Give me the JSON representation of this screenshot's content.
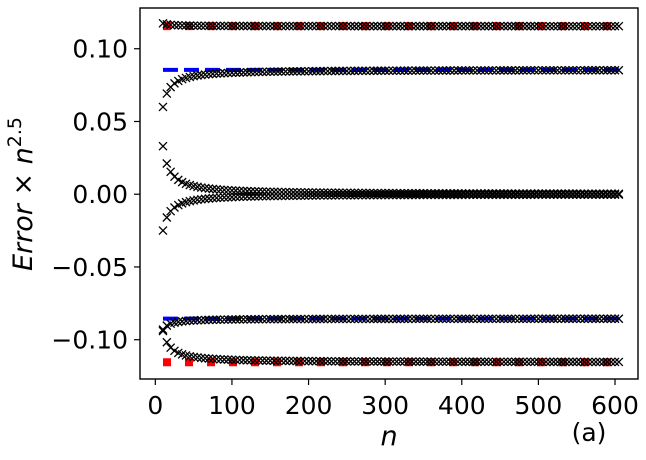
{
  "chart_data": {
    "type": "scatter",
    "title": "",
    "xlabel": "n",
    "ylabel_main": "Error × n",
    "ylabel_exponent": "2.5",
    "panel_label": "(a)",
    "xlim": [
      -20,
      630
    ],
    "ylim": [
      -0.127,
      0.128
    ],
    "xticks": [
      0,
      100,
      200,
      300,
      400,
      500,
      600
    ],
    "xtick_labels": [
      "0",
      "100",
      "200",
      "300",
      "400",
      "500",
      "600"
    ],
    "yticks": [
      -0.1,
      -0.05,
      0.0,
      0.05,
      0.1
    ],
    "ytick_labels": [
      "−0.10",
      "−0.05",
      "0.00",
      "0.05",
      "0.10"
    ],
    "grid": false,
    "marker_series": {
      "marker": "x",
      "color": "#000000",
      "n_start": 10,
      "n_end": 605,
      "n_step": 5,
      "curves": [
        {
          "limit": 0.1155,
          "start_value": 0.1175
        },
        {
          "limit": 0.0855,
          "start_value": 0.06
        },
        {
          "limit": 0.0,
          "start_value": 0.033
        },
        {
          "limit": 0.0,
          "start_value": -0.025
        },
        {
          "limit": -0.0855,
          "start_value": -0.093
        },
        {
          "limit": -0.1155,
          "start_value": -0.094
        }
      ]
    },
    "reference_lines": [
      {
        "style": "dotted-square",
        "color": "#ff0000",
        "y": 0.1155,
        "x_range": [
          10,
          605
        ]
      },
      {
        "style": "dashed",
        "color": "#0000ff",
        "y": 0.0855,
        "x_range": [
          10,
          605
        ]
      },
      {
        "style": "dashed",
        "color": "#0000ff",
        "y": -0.0855,
        "x_range": [
          10,
          605
        ]
      },
      {
        "style": "dotted-square",
        "color": "#ff0000",
        "y": -0.1155,
        "x_range": [
          10,
          605
        ]
      }
    ]
  }
}
